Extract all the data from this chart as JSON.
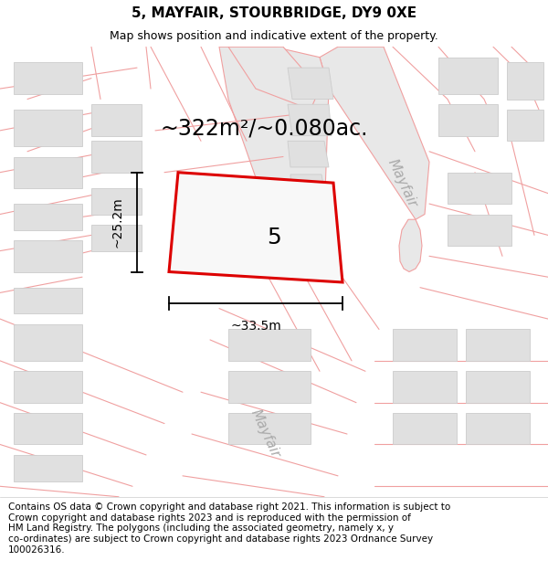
{
  "title": "5, MAYFAIR, STOURBRIDGE, DY9 0XE",
  "subtitle": "Map shows position and indicative extent of the property.",
  "footer": "Contains OS data © Crown copyright and database right 2021. This information is subject to\nCrown copyright and database rights 2023 and is reproduced with the permission of\nHM Land Registry. The polygons (including the associated geometry, namely x, y\nco-ordinates) are subject to Crown copyright and database rights 2023 Ordnance Survey\n100026316.",
  "area_text": "~322m²/~0.080ac.",
  "width_label": "~33.5m",
  "height_label": "~25.2m",
  "plot_number": "5",
  "bg_color": "#ffffff",
  "road_line_color": "#f0a0a0",
  "road_fill_color": "#e8e8e8",
  "building_fill": "#e0e0e0",
  "building_edge": "#cccccc",
  "plot_fill": "#f8f8f8",
  "plot_outline_color": "#dd0000",
  "street_label_color": "#aaaaaa",
  "title_fontsize": 11,
  "subtitle_fontsize": 9,
  "footer_fontsize": 7.5,
  "area_fontsize": 17,
  "label_fontsize": 10,
  "plot_label_fontsize": 18,
  "street_fontsize": 11
}
